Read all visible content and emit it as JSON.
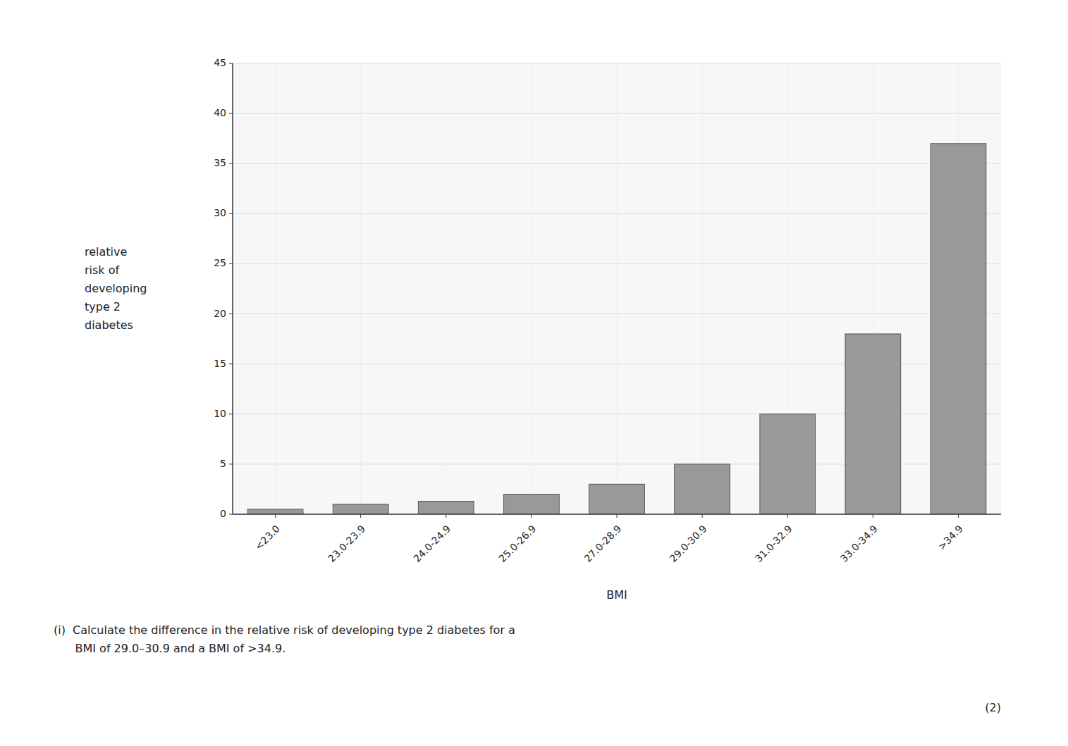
{
  "chart_data": {
    "type": "bar",
    "xlabel": "BMI",
    "ylabel": "relative\nrisk of\ndeveloping\ntype 2\ndiabetes",
    "categories": [
      "<23.0",
      "23.0-23.9",
      "24.0-24.9",
      "25.0-26.9",
      "27.0-28.9",
      "29.0-30.9",
      "31.0-32.9",
      "33.0-34.9",
      ">34.9"
    ],
    "values": [
      0.5,
      1.0,
      1.3,
      2.0,
      3.0,
      5.0,
      10.0,
      18.0,
      37.0
    ],
    "color": "#999999",
    "ylim": [
      0,
      45
    ],
    "yticks": [
      0,
      5,
      10,
      15,
      20,
      25,
      30,
      35,
      40,
      45
    ],
    "grid": true,
    "annotations": [
      "(i)  Calculate the difference in the relative risk of developing type 2 diabetes for a\n      BMI of 29.0–30.9 and a BMI of >34.9.",
      "(2)"
    ]
  }
}
